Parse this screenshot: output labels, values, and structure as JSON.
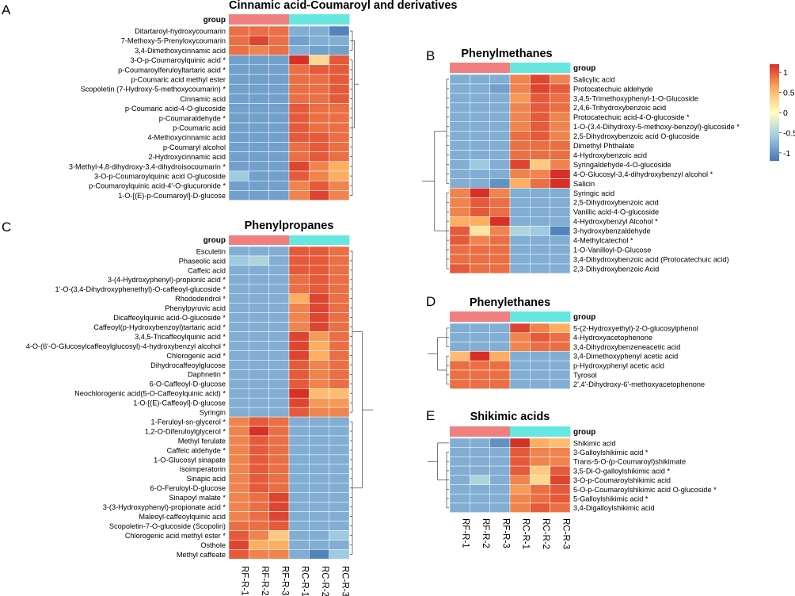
{
  "colors": {
    "rf_group": "#F08080",
    "rc_group": "#66E8E0",
    "scale_stops": [
      "#4575B4",
      "#9FCAE1",
      "#FFFFBF",
      "#FDAE61",
      "#D73027"
    ]
  },
  "group_label": "group",
  "legend": {
    "ticks": [
      "1",
      "0.5",
      "0",
      "-0.5",
      "-1"
    ],
    "min": -1.2,
    "max": 1.2
  },
  "column_labels": [
    "RF-R-1",
    "RF-R-2",
    "RF-R-3",
    "RC-R-1",
    "RC-R-2",
    "RC-R-3"
  ],
  "chart_data": [
    {
      "type": "heatmap",
      "panel": "A",
      "title": "Cinnamic acid-Coumaroyl and derivatives",
      "rows": [
        "Ditartaroyl-hydroxycoumarin",
        "7-Methoxy-5-Prenyloxycoumarin",
        "3,4-Dimethoxycinnamic acid",
        "3-O-p-Coumaroylquinic acid *",
        "p-Coumaroylferuloyltartaric acid *",
        "p-Coumaric acid methyl ester",
        "Scopoletin (7-Hydroxy-5-methoxycoumarin) *",
        "Cinnamic acid",
        "p-Coumaric acid-4-O-glucoside",
        "p-Coumaraldehyde *",
        "p-Coumaric acid",
        "4-Methoxycinnamic acid",
        "p-Coumaryl alcohol",
        "2-Hydroxycinnamic acid",
        "3-Methyl-4,8-dihydroxy-3,4-dihydroisocoumarin *",
        "3-O-p-Coumaroylquinic acid O-glucoside",
        "p-Coumaroylquinic acid-4'-O-glucuronide *",
        "1-O-[(E)-p-Coumaroyl]-D-glucose"
      ],
      "values": [
        [
          0.9,
          0.9,
          0.9,
          -0.8,
          -0.8,
          -1.1
        ],
        [
          0.9,
          1.1,
          0.9,
          -0.9,
          -0.8,
          -0.8
        ],
        [
          0.9,
          0.8,
          0.9,
          -0.8,
          -0.9,
          -0.9
        ],
        [
          -0.9,
          -0.9,
          -0.9,
          1.2,
          0.3,
          1.0
        ],
        [
          -0.9,
          -0.9,
          -0.9,
          0.9,
          1.0,
          1.0
        ],
        [
          -0.9,
          -0.9,
          -0.9,
          0.9,
          0.9,
          1.0
        ],
        [
          -0.9,
          -0.9,
          -0.9,
          0.9,
          0.9,
          1.0
        ],
        [
          -0.9,
          -0.9,
          -0.9,
          0.9,
          0.9,
          1.0
        ],
        [
          -0.9,
          -0.9,
          -0.9,
          1.0,
          0.9,
          0.9
        ],
        [
          -0.9,
          -0.9,
          -0.9,
          1.0,
          0.9,
          0.9
        ],
        [
          -0.9,
          -0.9,
          -0.9,
          1.0,
          0.9,
          0.9
        ],
        [
          -0.9,
          -0.9,
          -0.9,
          1.0,
          1.0,
          0.9
        ],
        [
          -0.9,
          -0.9,
          -0.9,
          0.9,
          1.0,
          0.9
        ],
        [
          -0.9,
          -0.9,
          -0.9,
          0.9,
          1.0,
          0.9
        ],
        [
          -0.9,
          -0.9,
          -0.9,
          1.1,
          0.8,
          0.6
        ],
        [
          -0.6,
          -0.9,
          -0.9,
          1.0,
          0.8,
          0.6
        ],
        [
          -0.9,
          -0.9,
          -0.9,
          0.8,
          1.0,
          0.8
        ],
        [
          -0.9,
          -0.9,
          -0.9,
          0.8,
          1.1,
          0.8
        ]
      ]
    },
    {
      "type": "heatmap",
      "panel": "B",
      "title": "Phenylmethanes",
      "rows": [
        "Salicylic acid",
        "Protocatechuic aldehyde",
        "3,4,5-Trimethoxyphenyl-1-O-Glucoside",
        "2,4,6-Trihydroxybenzoic acid",
        "Protocatechuic acid-4-O-glucoside *",
        "1-O-(3,4-Dihydroxy-5-methoxy-benzoyl)-glucoside *",
        "2,5-Dihydroxybenzoic acid O-glucoside",
        "Dimethyl Phthalate",
        "4-Hydroxybenzoic acid",
        "Syringaldehyde-4-O-glucoside",
        "4-O-Glucosyl-3,4-dihydroxybenzyl alcohol *",
        "Salicin",
        "Syringic acid",
        "2,5-Dihydroxybenzoic acid",
        "Vanillic acid-4-O-glucoside",
        "4-Hydroxybenzyl Alcohol *",
        "3-hydroxybenzaldehyde",
        "4-Methylcatechol *",
        "1-O-Vanilloyl-D-Glucose",
        "3,4-Dihydroxybenzoic acid (Protocatechuic acid)",
        "2,3-Dihydroxybenzoic Acid"
      ],
      "values": [
        [
          -0.8,
          -0.8,
          -0.8,
          0.8,
          1.1,
          0.8
        ],
        [
          -0.8,
          -0.8,
          -0.9,
          0.8,
          1.1,
          1.0
        ],
        [
          -0.8,
          -0.8,
          -0.8,
          0.7,
          1.0,
          0.9
        ],
        [
          -0.8,
          -0.8,
          -0.8,
          0.8,
          1.0,
          0.9
        ],
        [
          -0.8,
          -0.8,
          -0.8,
          0.8,
          1.0,
          0.8
        ],
        [
          -0.8,
          -0.8,
          -0.8,
          0.8,
          1.0,
          0.8
        ],
        [
          -0.8,
          -0.8,
          -0.8,
          0.9,
          1.0,
          0.8
        ],
        [
          -0.8,
          -0.8,
          -0.8,
          0.9,
          0.9,
          0.9
        ],
        [
          -0.8,
          -0.8,
          -0.8,
          0.9,
          0.9,
          0.9
        ],
        [
          -0.8,
          -0.6,
          -0.8,
          1.1,
          0.4,
          0.8
        ],
        [
          -0.8,
          -0.8,
          -0.8,
          0.8,
          0.8,
          1.2
        ],
        [
          -0.8,
          -0.8,
          -1.0,
          0.6,
          0.9,
          1.2
        ],
        [
          0.8,
          1.2,
          0.8,
          -0.8,
          -0.8,
          -0.8
        ],
        [
          0.8,
          1.0,
          0.9,
          -0.8,
          -0.8,
          -0.8
        ],
        [
          0.8,
          1.0,
          0.9,
          -0.8,
          -0.8,
          -0.8
        ],
        [
          0.6,
          0.6,
          1.2,
          -0.8,
          -0.8,
          -0.8
        ],
        [
          1.0,
          0.2,
          0.8,
          -0.5,
          -0.6,
          -1.1
        ],
        [
          1.0,
          0.8,
          0.9,
          -0.8,
          -0.8,
          -0.8
        ],
        [
          0.9,
          0.9,
          0.9,
          -0.8,
          -0.8,
          -0.8
        ],
        [
          0.9,
          0.9,
          0.9,
          -0.8,
          -0.8,
          -0.8
        ],
        [
          1.0,
          0.9,
          0.9,
          -0.8,
          -0.8,
          -0.8
        ]
      ]
    },
    {
      "type": "heatmap",
      "panel": "C",
      "title": "Phenylpropanes",
      "rows": [
        "Esculetin",
        "Phaseolic acid",
        "Caffeic acid",
        "3-(4-Hydroxyphenyl)-propionic acid *",
        "1'-O-(3,4-Dihydroxyphenethyl)-O-caffeoyl-glucoside *",
        "Rhododendrol *",
        "Phenylpyruvic acid",
        "Dicaffeoylquinic acid-O-glucoside *",
        "Caffeoyl(p-Hydroxybenzoyl)tartaric acid *",
        "3,4,5-Tricaffeoylquinic acid *",
        "4-O-(6'-O-Glucosylcaffeoylglucosyl)-4-hydroxybenzyl alcohol *",
        "Chlorogenic acid *",
        "Dihydrocaffeoylglucose",
        "Daphnetin *",
        "6-O-Caffeoyl-D-glucose",
        "Neochlorogenic acid(5-O-Caffeoylquinic acid) *",
        "1-O-[(E)-Caffeoyl]-D-glucose",
        "Syringin",
        "1-Feruloyl-sn-glycerol *",
        "1,2-O-Diferuloylglycerol *",
        "Methyl ferulate",
        "Caffeic aldehyde *",
        "1-O-Glucosyl sinapate",
        "Isoimperatorin",
        "Sinapic acid",
        "6-O-Feruloyl-D-glucose",
        "Sinapoyl malate *",
        "3-(3-Hydroxyphenyl)-propionate acid *",
        "Maleoyl-caffeoylquinic acid",
        "Scopoletin-7-O-glucoside (Scopolin)",
        "Chlorogenic acid methyl ester *",
        "Osthole",
        "Methyl caffeate"
      ],
      "values": [
        [
          -0.8,
          -0.8,
          -0.8,
          1.0,
          1.0,
          0.9
        ],
        [
          -0.6,
          -0.5,
          -0.8,
          1.0,
          1.0,
          0.9
        ],
        [
          -0.8,
          -0.8,
          -0.8,
          1.0,
          1.0,
          0.9
        ],
        [
          -0.8,
          -0.8,
          -0.8,
          0.9,
          1.0,
          0.9
        ],
        [
          -0.8,
          -0.8,
          -0.8,
          0.9,
          1.0,
          0.9
        ],
        [
          -0.8,
          -0.8,
          -0.8,
          0.6,
          1.1,
          0.9
        ],
        [
          -0.8,
          -0.8,
          -0.8,
          0.8,
          1.1,
          0.9
        ],
        [
          -0.8,
          -0.8,
          -0.8,
          0.8,
          1.1,
          0.9
        ],
        [
          -0.8,
          -0.8,
          -0.8,
          0.8,
          1.1,
          0.9
        ],
        [
          -0.8,
          -0.8,
          -0.8,
          1.1,
          0.7,
          0.9
        ],
        [
          -0.8,
          -0.8,
          -0.8,
          1.1,
          0.6,
          0.9
        ],
        [
          -0.8,
          -0.8,
          -0.8,
          1.1,
          0.6,
          0.9
        ],
        [
          -0.8,
          -0.8,
          -0.8,
          1.0,
          0.8,
          0.9
        ],
        [
          -0.8,
          -0.8,
          -0.8,
          1.0,
          0.8,
          0.9
        ],
        [
          -0.8,
          -0.8,
          -0.8,
          1.0,
          0.8,
          0.9
        ],
        [
          -0.8,
          -0.8,
          -0.8,
          1.2,
          0.5,
          0.5
        ],
        [
          -0.8,
          -0.8,
          -0.8,
          1.1,
          0.7,
          0.7
        ],
        [
          -0.8,
          -0.8,
          -0.8,
          1.0,
          0.8,
          0.8
        ],
        [
          0.8,
          1.0,
          0.9,
          -0.8,
          -0.8,
          -0.8
        ],
        [
          0.8,
          1.2,
          0.9,
          -0.8,
          -0.8,
          -0.8
        ],
        [
          0.8,
          1.0,
          0.9,
          -0.8,
          -0.8,
          -0.8
        ],
        [
          0.8,
          1.0,
          0.9,
          -0.8,
          -0.8,
          -0.8
        ],
        [
          0.8,
          1.0,
          0.9,
          -0.8,
          -0.8,
          -0.8
        ],
        [
          0.8,
          1.0,
          0.9,
          -0.8,
          -0.8,
          -0.8
        ],
        [
          0.8,
          1.0,
          0.9,
          -0.8,
          -0.8,
          -0.8
        ],
        [
          0.8,
          1.0,
          0.9,
          -0.8,
          -0.8,
          -0.8
        ],
        [
          0.8,
          0.9,
          1.1,
          -0.8,
          -0.8,
          -0.8
        ],
        [
          0.8,
          0.9,
          1.1,
          -0.8,
          -0.8,
          -0.8
        ],
        [
          0.8,
          0.9,
          1.1,
          -0.8,
          -0.8,
          -0.8
        ],
        [
          0.9,
          0.9,
          1.0,
          -0.8,
          -0.8,
          -0.8
        ],
        [
          1.0,
          0.8,
          0.4,
          -0.8,
          -0.8,
          -0.6
        ],
        [
          1.1,
          0.6,
          0.6,
          -0.8,
          -0.8,
          -0.8
        ],
        [
          1.0,
          0.8,
          0.8,
          -0.8,
          -1.1,
          -0.6
        ]
      ]
    },
    {
      "type": "heatmap",
      "panel": "D",
      "title": "Phenylethanes",
      "rows": [
        "5-(2-Hydroxyethyl)-2-O-glucosylphenol",
        "4-Hydroxyacetophenone",
        "3,4-Dihydroxybenzeneacetic acid",
        "3,4-Dimethoxyphenyl acetic acid",
        "p-Hydroxyphenyl acetic acid",
        "Tyrosol",
        "2',4'-Dihydroxy-6'-methoxyacetophenone"
      ],
      "values": [
        [
          -0.8,
          -0.8,
          -0.8,
          1.1,
          0.8,
          0.6
        ],
        [
          -0.8,
          -0.8,
          -0.8,
          0.8,
          1.0,
          0.9
        ],
        [
          -0.8,
          -0.8,
          -0.8,
          0.8,
          0.9,
          0.9
        ],
        [
          0.5,
          1.2,
          0.6,
          -0.8,
          -0.8,
          -0.8
        ],
        [
          0.9,
          0.9,
          0.9,
          -0.8,
          -0.8,
          -0.8
        ],
        [
          0.9,
          0.9,
          0.9,
          -0.8,
          -0.8,
          -0.8
        ],
        [
          0.9,
          0.9,
          0.9,
          -0.8,
          -0.8,
          -0.8
        ]
      ]
    },
    {
      "type": "heatmap",
      "panel": "E",
      "title": "Shikimic acids",
      "rows": [
        "Shikimic acid",
        "3-Galloylshikimic acid *",
        "Trans-5-O-(p-Coumaroyl)shikimate",
        "3,5-Di-O-galloylshikimic acid *",
        "3-O-p-Coumaroylshikimic acid",
        "5-O-p-Coumaroylshikimic acid O-glucoside *",
        "5-Galloylshikimic acid *",
        "3,4-Digalloylshikimic acid"
      ],
      "values": [
        [
          -0.8,
          -0.8,
          -1.0,
          1.2,
          0.6,
          0.5
        ],
        [
          -0.8,
          -0.8,
          -0.8,
          1.0,
          0.8,
          0.8
        ],
        [
          -0.8,
          -0.8,
          -0.8,
          1.0,
          0.8,
          0.8
        ],
        [
          -0.8,
          -0.8,
          -0.8,
          1.0,
          0.4,
          1.0
        ],
        [
          -0.8,
          -0.5,
          -0.8,
          0.8,
          0.3,
          1.1
        ],
        [
          -0.8,
          -0.8,
          -0.8,
          0.7,
          0.9,
          1.0
        ],
        [
          -0.8,
          -0.8,
          -0.8,
          0.8,
          0.9,
          1.0
        ],
        [
          -0.8,
          -0.8,
          -0.8,
          0.8,
          1.0,
          0.9
        ]
      ]
    }
  ]
}
